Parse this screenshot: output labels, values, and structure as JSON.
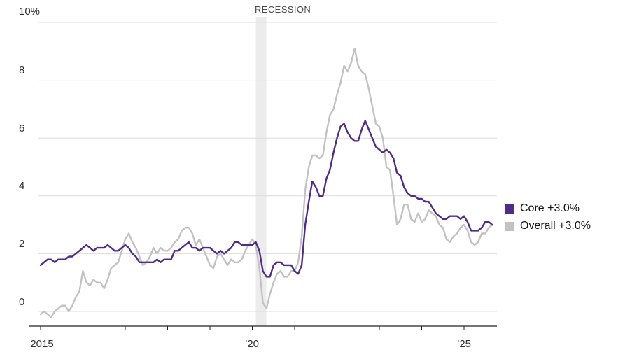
{
  "chart": {
    "recession_label": "RECESSION",
    "y_axis_labels": [
      "10%",
      "8",
      "6",
      "4",
      "2",
      "0"
    ],
    "x_axis_labels": [
      "2015",
      "’20",
      "’25"
    ],
    "legend": [
      {
        "label": "Core +3.0%",
        "color": "#512c87"
      },
      {
        "label": "Overall +3.0%",
        "color": "#c2c2c2"
      }
    ],
    "colors": {
      "gridline": "#dcdcdc",
      "axis": "#222222",
      "recession_band": "#ececec",
      "core_line": "#512c87",
      "overall_line": "#c2c2c2"
    }
  },
  "chart_data": {
    "type": "line",
    "x_unit": "month",
    "x_start_year": 2015,
    "xlim": [
      2015,
      2025.95
    ],
    "ylim": [
      -0.5,
      10
    ],
    "y_ticks": [
      0,
      2,
      4,
      6,
      8,
      10
    ],
    "x_tick_years": [
      2015,
      2016,
      2017,
      2018,
      2019,
      2020,
      2021,
      2022,
      2023,
      2024,
      2025
    ],
    "grid": "horizontal",
    "legend_position": "right",
    "recession_band_years": [
      2020.083,
      2020.333
    ],
    "series": [
      {
        "name": "Core",
        "legend_label": "Core +3.0%",
        "latest_value": 3.0,
        "color": "#512c87",
        "values": [
          1.6,
          1.7,
          1.8,
          1.8,
          1.7,
          1.8,
          1.8,
          1.8,
          1.9,
          1.9,
          2.0,
          2.1,
          2.2,
          2.3,
          2.2,
          2.1,
          2.2,
          2.2,
          2.2,
          2.3,
          2.2,
          2.1,
          2.1,
          2.2,
          2.3,
          2.2,
          2.0,
          1.9,
          1.7,
          1.7,
          1.7,
          1.7,
          1.7,
          1.8,
          1.7,
          1.8,
          1.8,
          1.8,
          2.1,
          2.1,
          2.2,
          2.3,
          2.4,
          2.2,
          2.2,
          2.1,
          2.2,
          2.2,
          2.2,
          2.1,
          2.0,
          2.1,
          2.0,
          2.1,
          2.2,
          2.4,
          2.4,
          2.3,
          2.3,
          2.3,
          2.3,
          2.4,
          2.1,
          1.4,
          1.2,
          1.2,
          1.6,
          1.7,
          1.7,
          1.6,
          1.6,
          1.6,
          1.4,
          1.3,
          1.6,
          3.0,
          3.8,
          4.5,
          4.3,
          4.0,
          4.0,
          4.6,
          4.9,
          5.5,
          6.0,
          6.4,
          6.5,
          6.2,
          6.0,
          5.9,
          5.9,
          6.3,
          6.6,
          6.3,
          6.0,
          5.7,
          5.6,
          5.5,
          5.6,
          5.5,
          5.3,
          4.8,
          4.7,
          4.3,
          4.1,
          4.0,
          4.0,
          3.9,
          3.9,
          3.8,
          3.8,
          3.6,
          3.4,
          3.3,
          3.2,
          3.2,
          3.3,
          3.3,
          3.3,
          3.2,
          3.3,
          3.1,
          2.8,
          2.8,
          2.8,
          2.9,
          3.1,
          3.1,
          3.0
        ]
      },
      {
        "name": "Overall",
        "legend_label": "Overall +3.0%",
        "latest_value": 3.0,
        "color": "#c2c2c2",
        "values": [
          -0.1,
          0.0,
          -0.1,
          -0.2,
          0.0,
          0.1,
          0.2,
          0.2,
          0.0,
          0.2,
          0.5,
          0.7,
          1.4,
          1.0,
          0.9,
          1.1,
          1.0,
          1.0,
          0.8,
          1.1,
          1.5,
          1.6,
          1.7,
          2.1,
          2.5,
          2.7,
          2.4,
          2.2,
          1.9,
          1.6,
          1.7,
          1.9,
          2.2,
          2.0,
          2.2,
          2.1,
          2.1,
          2.2,
          2.4,
          2.5,
          2.8,
          2.9,
          2.9,
          2.7,
          2.3,
          2.5,
          2.2,
          1.9,
          1.6,
          1.5,
          1.9,
          2.0,
          1.8,
          1.6,
          1.8,
          1.7,
          1.7,
          1.8,
          2.1,
          2.3,
          2.5,
          2.3,
          1.5,
          0.3,
          0.1,
          0.6,
          1.0,
          1.3,
          1.4,
          1.2,
          1.2,
          1.4,
          1.4,
          1.7,
          2.6,
          4.2,
          5.0,
          5.4,
          5.4,
          5.3,
          5.4,
          6.2,
          6.8,
          7.0,
          7.5,
          7.9,
          8.5,
          8.3,
          8.6,
          9.1,
          8.5,
          8.3,
          8.2,
          7.7,
          7.1,
          6.5,
          6.4,
          6.0,
          5.0,
          4.9,
          4.0,
          3.0,
          3.2,
          3.7,
          3.7,
          3.2,
          3.1,
          3.4,
          3.1,
          3.2,
          3.5,
          3.4,
          3.3,
          3.0,
          2.9,
          2.5,
          2.4,
          2.6,
          2.7,
          2.9,
          3.0,
          2.8,
          2.4,
          2.3,
          2.4,
          2.7,
          2.7,
          2.9,
          3.0
        ]
      }
    ]
  }
}
